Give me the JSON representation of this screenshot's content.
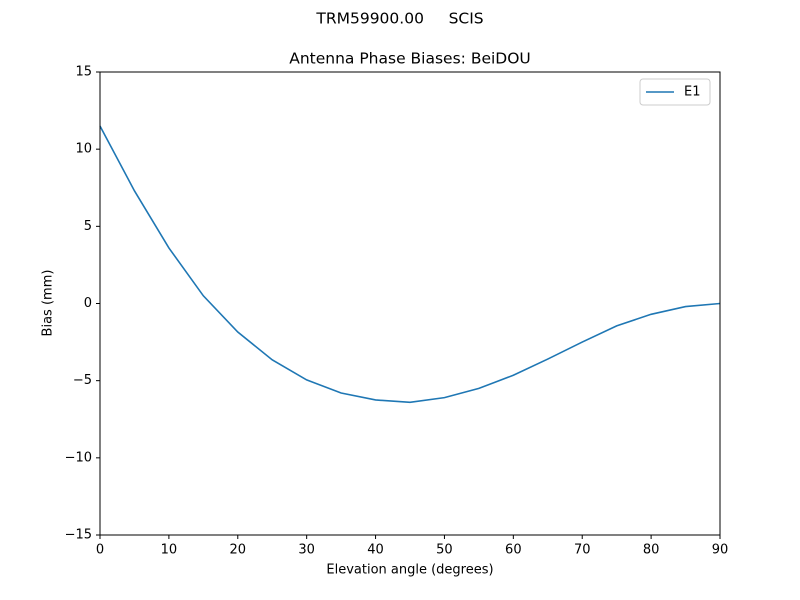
{
  "chart_data": {
    "type": "line",
    "suptitle": "TRM59900.00     SCIS",
    "title": "Antenna Phase Biases: BeiDOU",
    "x_label": "Elevation angle (degrees)",
    "y_label": "Bias (mm)",
    "x": [
      0,
      5,
      10,
      15,
      20,
      25,
      30,
      35,
      40,
      45,
      50,
      55,
      60,
      65,
      70,
      75,
      80,
      85,
      90
    ],
    "series": [
      {
        "name": "E1",
        "color": "#1f77b4",
        "values": [
          11.5,
          7.3,
          3.6,
          0.5,
          -1.85,
          -3.65,
          -4.95,
          -5.8,
          -6.25,
          -6.4,
          -6.1,
          -5.5,
          -4.65,
          -3.6,
          -2.5,
          -1.45,
          -0.7,
          -0.2,
          0.0
        ]
      }
    ],
    "xlim": [
      0,
      90
    ],
    "xticks": [
      0,
      10,
      20,
      30,
      40,
      50,
      60,
      70,
      80,
      90
    ],
    "ylim": [
      -15,
      15
    ],
    "yticks": [
      {
        "value": -15,
        "label": "−15"
      },
      {
        "value": -10,
        "label": "−10"
      },
      {
        "value": -5,
        "label": "−5"
      },
      0,
      5,
      10,
      15
    ],
    "grid": false,
    "legend": "upper-right"
  }
}
